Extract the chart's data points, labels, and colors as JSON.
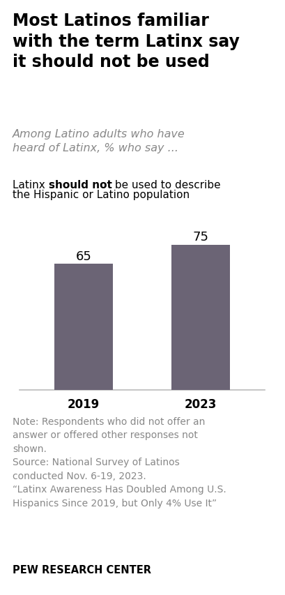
{
  "title_line1": "Most Latinos familiar",
  "title_line2": "with the term Latinx say",
  "title_line3": "it should not be used",
  "subtitle": "Among Latino adults who have\nheard of Latinx, % who say ...",
  "bar_label_part1": "Latinx ",
  "bar_label_bold": "should not",
  "bar_label_part2": " be used to describe",
  "bar_label_line2": "the Hispanic or Latino population",
  "categories": [
    "2019",
    "2023"
  ],
  "values": [
    65,
    75
  ],
  "bar_color": "#6b6475",
  "bar_width": 0.5,
  "ylim": [
    0,
    90
  ],
  "note_line1": "Note: Respondents who did not offer an",
  "note_line2": "answer or offered other responses not",
  "note_line3": "shown.",
  "note_line4": "Source: National Survey of Latinos",
  "note_line5": "conducted Nov. 6-19, 2023.",
  "note_line6": "“Latinx Awareness Has Doubled Among U.S.",
  "note_line7": "Hispanics Since 2019, but Only 4% Use It”",
  "branding": "PEW RESEARCH CENTER",
  "background_color": "#ffffff",
  "title_color": "#000000",
  "subtitle_color": "#888888",
  "bar_label_color": "#000000",
  "note_color": "#888888",
  "branding_color": "#000000",
  "title_fontsize": 17,
  "subtitle_fontsize": 11.5,
  "bar_label_fontsize": 11,
  "value_fontsize": 13,
  "note_fontsize": 10,
  "branding_fontsize": 10.5,
  "xtick_fontsize": 12
}
